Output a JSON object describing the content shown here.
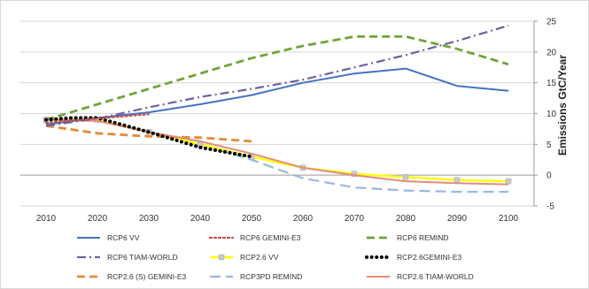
{
  "chart_data": {
    "type": "line",
    "title": "",
    "xlabel": "",
    "ylabel": "Emissions GtC/Year",
    "x": [
      2010,
      2020,
      2030,
      2040,
      2050,
      2060,
      2070,
      2080,
      2090,
      2100
    ],
    "xticks": [
      "2010",
      "2020",
      "2030",
      "2040",
      "2050",
      "2060",
      "2070",
      "2080",
      "2090",
      "2100"
    ],
    "ylim": [
      -5,
      25
    ],
    "yticks": [
      "-5",
      "0",
      "5",
      "10",
      "15",
      "20",
      "25"
    ],
    "y_axis_side": "right",
    "grid": "horizontal",
    "legend_position": "bottom",
    "series": [
      {
        "name": "RCP6 VV",
        "color": "#4472c4",
        "style": "solid",
        "x": [
          2010,
          2020,
          2030,
          2040,
          2050,
          2060,
          2070,
          2080,
          2090,
          2100
        ],
        "y": [
          8.2,
          9.3,
          10.2,
          11.5,
          13.0,
          15.0,
          16.5,
          17.3,
          14.5,
          13.7
        ]
      },
      {
        "name": "RCP6 GEMINI-E3",
        "color": "#c0504d",
        "style": "dotted",
        "x": [
          2010,
          2020,
          2030
        ],
        "y": [
          8.5,
          9.2,
          9.9
        ]
      },
      {
        "name": "RCP6 REMIND",
        "color": "#70a33c",
        "style": "dashed",
        "x": [
          2010,
          2020,
          2030,
          2040,
          2050,
          2060,
          2070,
          2080,
          2090,
          2100
        ],
        "y": [
          9.0,
          11.5,
          14.0,
          16.5,
          19.0,
          21.0,
          22.5,
          22.5,
          20.5,
          18.0
        ]
      },
      {
        "name": "RCP6 TIAM-WORLD",
        "color": "#7060a0",
        "style": "dashdot",
        "x": [
          2010,
          2020,
          2030,
          2040,
          2050,
          2060,
          2070,
          2080,
          2090,
          2100
        ],
        "y": [
          8.0,
          9.2,
          11.0,
          12.7,
          14.0,
          15.5,
          17.5,
          19.5,
          21.8,
          24.3
        ]
      },
      {
        "name": "RCP2.6 VV",
        "color": "#ffff00",
        "style": "solid-square",
        "x": [
          2010,
          2020,
          2030,
          2040,
          2050,
          2060,
          2070,
          2080,
          2090,
          2100
        ],
        "y": [
          9.0,
          9.0,
          7.0,
          5.0,
          3.0,
          1.2,
          0.2,
          -0.3,
          -0.8,
          -1.0
        ]
      },
      {
        "name": "RCP2.6GEMINI-E3",
        "color": "#000000",
        "style": "dotted-heavy",
        "x": [
          2010,
          2015,
          2020,
          2030,
          2040,
          2050
        ],
        "y": [
          9.0,
          9.3,
          9.3,
          7.0,
          4.5,
          3.0
        ]
      },
      {
        "name": "RCP2.6 (S) GEMINI-E3",
        "color": "#e58a3a",
        "style": "dashed",
        "x": [
          2010,
          2020,
          2030,
          2040,
          2050
        ],
        "y": [
          8.0,
          6.8,
          6.3,
          6.1,
          5.5
        ]
      },
      {
        "name": "RCP3PD REMIND",
        "color": "#9ab7e0",
        "style": "dashed-long",
        "x": [
          2010,
          2020,
          2030,
          2040,
          2050,
          2060,
          2070,
          2080,
          2090,
          2100
        ],
        "y": [
          9.0,
          9.0,
          7.0,
          5.0,
          2.5,
          -0.5,
          -2.0,
          -2.5,
          -2.7,
          -2.7
        ]
      },
      {
        "name": "RCP2.6 TIAM-WORLD",
        "color": "#e38c78",
        "style": "solid",
        "x": [
          2010,
          2020,
          2030,
          2040,
          2050,
          2060,
          2070,
          2080,
          2090,
          2100
        ],
        "y": [
          9.0,
          8.8,
          7.0,
          5.5,
          3.5,
          1.2,
          0.0,
          -1.0,
          -1.3,
          -1.5
        ]
      }
    ]
  }
}
